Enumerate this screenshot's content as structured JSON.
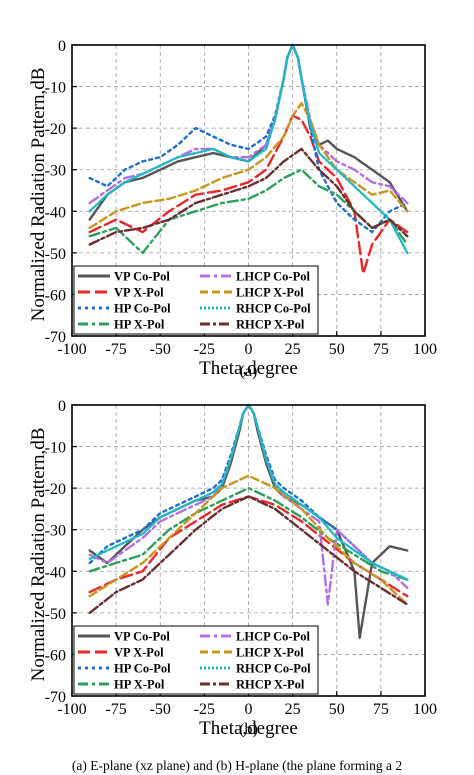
{
  "caption": "(a) E-plane (xz plane) and (b) H-plane (the plane forming a 2",
  "colors": {
    "VP Co-Pol": "#555555",
    "VP X-Pol": "#e8282b",
    "HP Co-Pol": "#1f6fd0",
    "HP X-Pol": "#2ca05a",
    "LHCP Co-Pol": "#b46fe6",
    "LHCP X-Pol": "#c8961e",
    "RHCP Co-Pol": "#20b8c6",
    "RHCP X-Pol": "#6b2e2e"
  },
  "chart_data": [
    {
      "type": "line",
      "sublabel": "(a)",
      "xlabel": "Theta,degree",
      "ylabel": "Normalized Radiation Pattern,dB",
      "xlim": [
        -100,
        100
      ],
      "ylim": [
        -70,
        0
      ],
      "xticks": [
        -100,
        -75,
        -50,
        -25,
        0,
        25,
        50,
        75,
        100
      ],
      "yticks": [
        0,
        -10,
        -20,
        -30,
        -40,
        -50,
        -60,
        -70
      ],
      "grid": true,
      "legend_position": "bottom",
      "series": [
        {
          "name": "VP Co-Pol",
          "x": [
            -90,
            -80,
            -70,
            -60,
            -50,
            -40,
            -30,
            -20,
            -10,
            0,
            5,
            10,
            15,
            20,
            22,
            25,
            28,
            30,
            35,
            40,
            45,
            50,
            60,
            70,
            80,
            90
          ],
          "y": [
            -42,
            -36,
            -33,
            -32,
            -30,
            -28,
            -27,
            -26,
            -27,
            -28,
            -26,
            -24,
            -18,
            -8,
            -3,
            0,
            -3,
            -8,
            -20,
            -24,
            -23,
            -25,
            -27,
            -30,
            -33,
            -40
          ]
        },
        {
          "name": "VP X-Pol",
          "x": [
            -90,
            -75,
            -60,
            -45,
            -30,
            -15,
            0,
            10,
            20,
            25,
            30,
            35,
            40,
            50,
            60,
            65,
            70,
            80,
            90
          ],
          "y": [
            -45,
            -42,
            -45,
            -40,
            -36,
            -35,
            -33,
            -30,
            -22,
            -17,
            -18,
            -22,
            -28,
            -32,
            -40,
            -55,
            -48,
            -42,
            -45
          ]
        },
        {
          "name": "HP Co-Pol",
          "x": [
            -90,
            -80,
            -70,
            -60,
            -50,
            -40,
            -30,
            -20,
            -10,
            0,
            10,
            15,
            20,
            22,
            25,
            28,
            30,
            35,
            40,
            50,
            60,
            70,
            80,
            90
          ],
          "y": [
            -32,
            -34,
            -30,
            -28,
            -27,
            -24,
            -20,
            -22,
            -24,
            -25,
            -22,
            -17,
            -8,
            -3,
            0,
            -3,
            -8,
            -20,
            -30,
            -38,
            -42,
            -45,
            -40,
            -38
          ]
        },
        {
          "name": "HP X-Pol",
          "x": [
            -90,
            -75,
            -60,
            -45,
            -30,
            -15,
            0,
            10,
            20,
            30,
            40,
            50,
            60,
            70,
            80,
            90
          ],
          "y": [
            -46,
            -44,
            -50,
            -42,
            -40,
            -38,
            -37,
            -35,
            -32,
            -30,
            -34,
            -36,
            -40,
            -44,
            -42,
            -48
          ]
        },
        {
          "name": "LHCP Co-Pol",
          "x": [
            -90,
            -80,
            -70,
            -60,
            -50,
            -40,
            -30,
            -20,
            -10,
            0,
            10,
            15,
            20,
            22,
            25,
            28,
            30,
            35,
            40,
            50,
            60,
            70,
            80,
            90
          ],
          "y": [
            -38,
            -35,
            -32,
            -31,
            -29,
            -27,
            -25,
            -25,
            -27,
            -27,
            -24,
            -18,
            -8,
            -3,
            0,
            -3,
            -8,
            -18,
            -24,
            -28,
            -30,
            -33,
            -34,
            -38
          ]
        },
        {
          "name": "LHCP X-Pol",
          "x": [
            -90,
            -75,
            -60,
            -45,
            -30,
            -15,
            0,
            10,
            20,
            25,
            30,
            35,
            40,
            50,
            60,
            70,
            80,
            90
          ],
          "y": [
            -44,
            -40,
            -38,
            -37,
            -35,
            -32,
            -30,
            -27,
            -22,
            -17,
            -14,
            -18,
            -24,
            -30,
            -33,
            -36,
            -35,
            -40
          ]
        },
        {
          "name": "RHCP Co-Pol",
          "x": [
            -90,
            -80,
            -70,
            -60,
            -50,
            -40,
            -30,
            -20,
            -10,
            0,
            10,
            15,
            20,
            22,
            25,
            28,
            30,
            35,
            40,
            50,
            60,
            70,
            80,
            90
          ],
          "y": [
            -40,
            -36,
            -33,
            -31,
            -29,
            -27,
            -26,
            -25,
            -27,
            -28,
            -25,
            -18,
            -8,
            -3,
            0,
            -3,
            -8,
            -19,
            -26,
            -30,
            -34,
            -38,
            -42,
            -50
          ]
        },
        {
          "name": "RHCP X-Pol",
          "x": [
            -90,
            -75,
            -60,
            -45,
            -30,
            -15,
            0,
            10,
            20,
            30,
            40,
            50,
            60,
            70,
            80,
            90
          ],
          "y": [
            -48,
            -45,
            -44,
            -42,
            -38,
            -36,
            -34,
            -32,
            -28,
            -25,
            -30,
            -34,
            -40,
            -44,
            -42,
            -46
          ]
        }
      ]
    },
    {
      "type": "line",
      "sublabel": "(b)",
      "xlabel": "Theta,degree",
      "ylabel": "Normalized Radiation Pattern,dB",
      "xlim": [
        -100,
        100
      ],
      "ylim": [
        -70,
        0
      ],
      "xticks": [
        -100,
        -75,
        -50,
        -25,
        0,
        25,
        50,
        75,
        100
      ],
      "yticks": [
        0,
        -10,
        -20,
        -30,
        -40,
        -50,
        -60,
        -70
      ],
      "grid": true,
      "legend_position": "bottom",
      "series": [
        {
          "name": "VP Co-Pol",
          "x": [
            -90,
            -80,
            -70,
            -60,
            -50,
            -40,
            -30,
            -20,
            -15,
            -10,
            -5,
            -3,
            0,
            3,
            5,
            10,
            15,
            20,
            30,
            40,
            50,
            60,
            63,
            70,
            80,
            90
          ],
          "y": [
            -35,
            -38,
            -34,
            -30,
            -27,
            -25,
            -23,
            -22,
            -20,
            -14,
            -6,
            -2,
            0,
            -2,
            -6,
            -14,
            -20,
            -22,
            -24,
            -27,
            -30,
            -40,
            -56,
            -38,
            -34,
            -35
          ]
        },
        {
          "name": "VP X-Pol",
          "x": [
            -90,
            -75,
            -60,
            -45,
            -30,
            -15,
            0,
            15,
            30,
            45,
            60,
            75,
            90
          ],
          "y": [
            -45,
            -42,
            -40,
            -32,
            -28,
            -24,
            -22,
            -24,
            -28,
            -33,
            -38,
            -42,
            -46
          ]
        },
        {
          "name": "HP Co-Pol",
          "x": [
            -90,
            -80,
            -70,
            -60,
            -50,
            -40,
            -30,
            -20,
            -15,
            -10,
            -5,
            -3,
            0,
            3,
            5,
            10,
            15,
            20,
            30,
            40,
            50,
            60,
            70,
            80,
            90
          ],
          "y": [
            -38,
            -34,
            -32,
            -30,
            -26,
            -24,
            -22,
            -20,
            -18,
            -12,
            -5,
            -2,
            0,
            -2,
            -5,
            -12,
            -18,
            -20,
            -23,
            -27,
            -30,
            -34,
            -38,
            -40,
            -42
          ]
        },
        {
          "name": "HP X-Pol",
          "x": [
            -90,
            -75,
            -60,
            -45,
            -30,
            -15,
            0,
            15,
            30,
            45,
            60,
            75,
            90
          ],
          "y": [
            -40,
            -38,
            -36,
            -30,
            -26,
            -23,
            -20,
            -23,
            -27,
            -32,
            -36,
            -40,
            -42
          ]
        },
        {
          "name": "LHCP Co-Pol",
          "x": [
            -90,
            -80,
            -70,
            -60,
            -50,
            -40,
            -30,
            -20,
            -15,
            -10,
            -5,
            -3,
            0,
            3,
            5,
            10,
            15,
            20,
            30,
            40,
            45,
            50,
            60,
            70,
            80,
            90
          ],
          "y": [
            -36,
            -38,
            -35,
            -32,
            -28,
            -26,
            -24,
            -22,
            -19,
            -13,
            -5,
            -2,
            0,
            -2,
            -5,
            -13,
            -19,
            -22,
            -25,
            -28,
            -48,
            -30,
            -34,
            -38,
            -40,
            -44
          ]
        },
        {
          "name": "LHCP X-Pol",
          "x": [
            -90,
            -75,
            -60,
            -45,
            -30,
            -15,
            0,
            15,
            30,
            45,
            60,
            75,
            90
          ],
          "y": [
            -46,
            -42,
            -38,
            -32,
            -26,
            -20,
            -17,
            -20,
            -25,
            -32,
            -38,
            -42,
            -48
          ]
        },
        {
          "name": "RHCP Co-Pol",
          "x": [
            -90,
            -80,
            -70,
            -60,
            -50,
            -40,
            -30,
            -20,
            -15,
            -10,
            -5,
            -3,
            0,
            3,
            5,
            10,
            15,
            20,
            30,
            40,
            50,
            60,
            70,
            80,
            90
          ],
          "y": [
            -37,
            -35,
            -33,
            -31,
            -27,
            -25,
            -23,
            -21,
            -19,
            -13,
            -5,
            -2,
            0,
            -2,
            -5,
            -13,
            -19,
            -21,
            -24,
            -27,
            -32,
            -35,
            -38,
            -40,
            -42
          ]
        },
        {
          "name": "RHCP X-Pol",
          "x": [
            -90,
            -75,
            -60,
            -45,
            -30,
            -15,
            0,
            15,
            30,
            45,
            60,
            75,
            90
          ],
          "y": [
            -50,
            -45,
            -42,
            -36,
            -30,
            -25,
            -22,
            -25,
            -30,
            -35,
            -40,
            -44,
            -48
          ]
        }
      ]
    }
  ]
}
